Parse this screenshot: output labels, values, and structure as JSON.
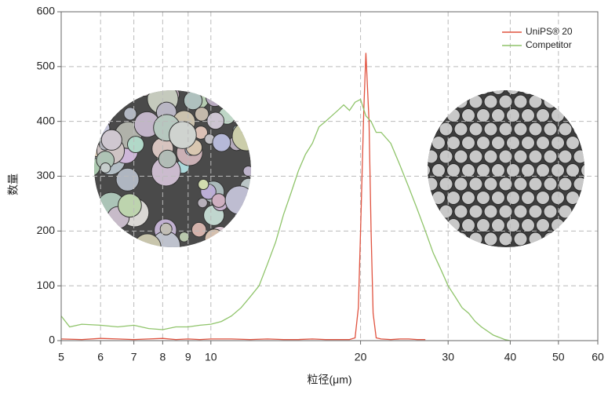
{
  "chart_data": {
    "type": "line",
    "x_label": "粒径(μm)",
    "y_label": "数量",
    "xscale": "log",
    "xlim": [
      5,
      60
    ],
    "xticks": [
      5,
      6,
      7,
      8,
      9,
      10,
      20,
      30,
      40,
      50,
      60
    ],
    "ylim": [
      0,
      600
    ],
    "yticks": [
      0,
      100,
      200,
      300,
      400,
      500,
      600
    ],
    "grid": true,
    "legend": "upper right",
    "series": [
      {
        "name": "UniPS® 20",
        "color": "#e0523f",
        "x": [
          5,
          5.5,
          6,
          6.5,
          7,
          7.5,
          8,
          8.5,
          9,
          9.5,
          10,
          11,
          12,
          13,
          14,
          15,
          16,
          17,
          18,
          19,
          19.5,
          19.8,
          20,
          20.3,
          20.5,
          20.8,
          21,
          21.2,
          21.5,
          22,
          23,
          24,
          25,
          26,
          27
        ],
        "values": [
          3,
          2,
          4,
          3,
          2,
          3,
          4,
          2,
          3,
          2,
          3,
          3,
          2,
          3,
          2,
          2,
          3,
          2,
          2,
          2,
          5,
          60,
          200,
          420,
          525,
          400,
          200,
          50,
          5,
          3,
          2,
          3,
          3,
          2,
          2
        ]
      },
      {
        "name": "Competitor",
        "color": "#8fc46a",
        "x": [
          5,
          5.2,
          5.5,
          6,
          6.5,
          7,
          7.5,
          8,
          8.5,
          9,
          9.5,
          10,
          10.5,
          11,
          11.5,
          12,
          12.5,
          13,
          13.5,
          14,
          14.5,
          15,
          15.5,
          16,
          16.5,
          17,
          17.5,
          18,
          18.5,
          19,
          19.5,
          20,
          20.5,
          21,
          21.5,
          22,
          23,
          24,
          25,
          26,
          27,
          28,
          29,
          30,
          31,
          32,
          33,
          34,
          35,
          37,
          39,
          40
        ],
        "values": [
          45,
          25,
          30,
          28,
          25,
          28,
          22,
          20,
          25,
          25,
          28,
          30,
          35,
          45,
          60,
          80,
          100,
          140,
          180,
          230,
          270,
          310,
          340,
          360,
          390,
          400,
          410,
          420,
          430,
          420,
          435,
          440,
          410,
          400,
          380,
          380,
          360,
          320,
          280,
          240,
          200,
          160,
          130,
          100,
          80,
          60,
          50,
          35,
          25,
          10,
          2,
          0
        ]
      }
    ]
  }
}
